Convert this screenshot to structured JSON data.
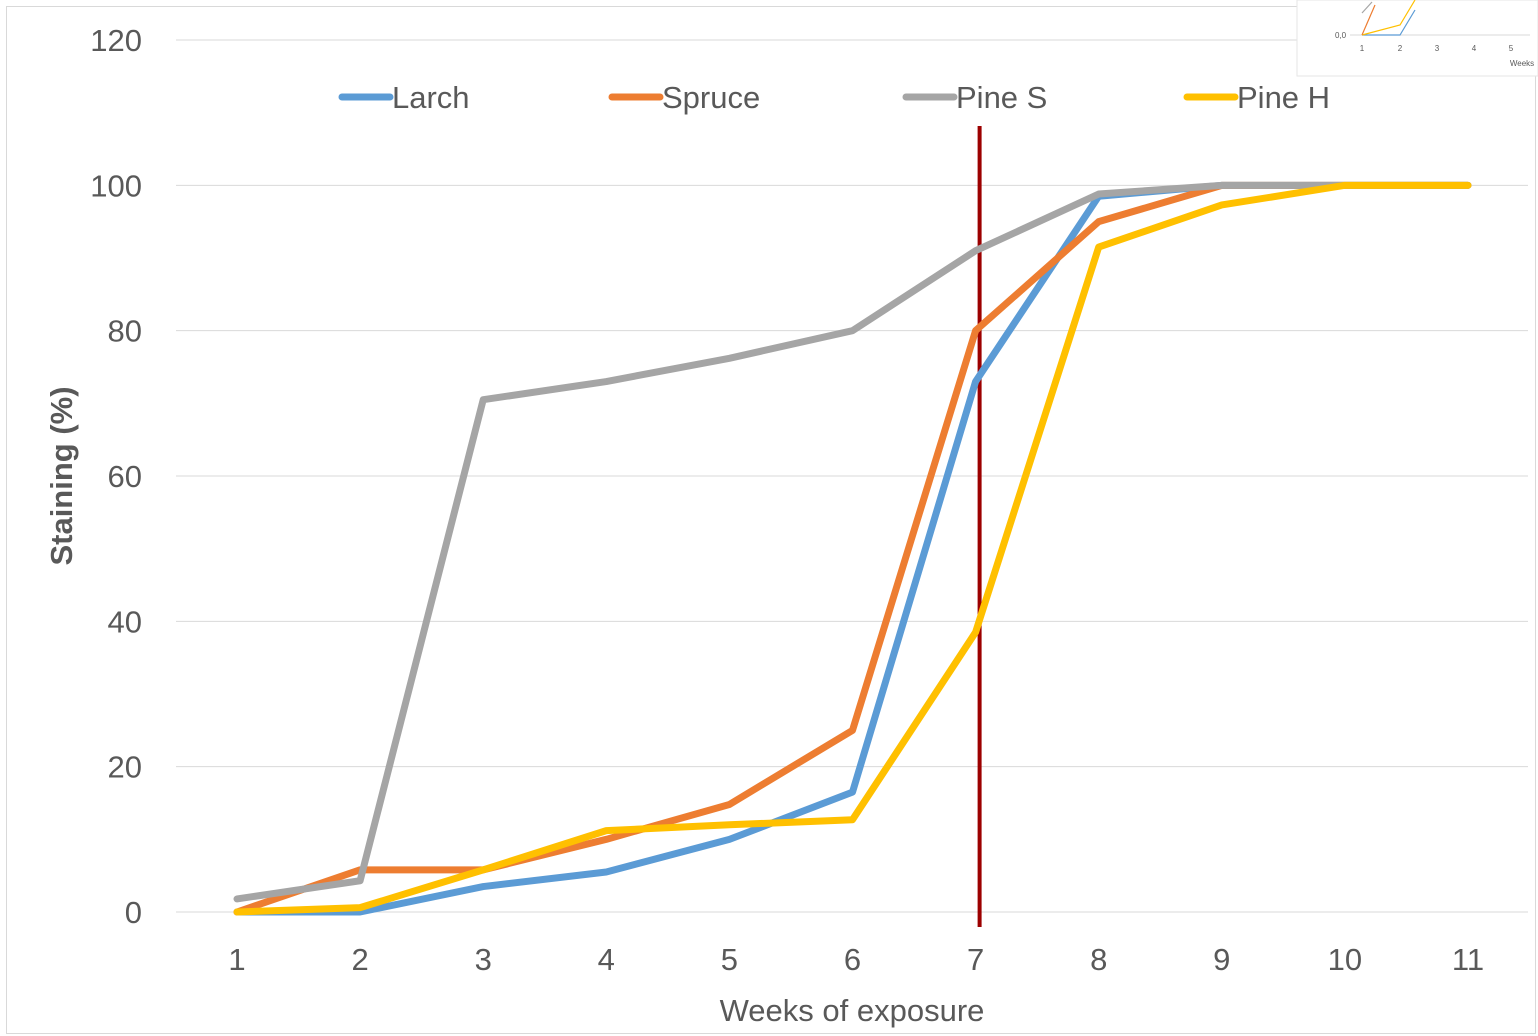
{
  "chart_data": {
    "type": "line",
    "title": "",
    "xlabel": "Weeks of exposure",
    "ylabel": "Staining (%)",
    "x": [
      1,
      2,
      3,
      4,
      5,
      6,
      7,
      8,
      9,
      10,
      11
    ],
    "xlim": [
      1,
      11
    ],
    "ylim": [
      0,
      120
    ],
    "yticks": [
      0,
      20,
      40,
      60,
      80,
      100,
      120
    ],
    "grid": "horizontal",
    "legend": "top",
    "series": [
      {
        "name": "Larch",
        "color": "#5b9bd5",
        "values": [
          0,
          0,
          3.5,
          5.5,
          10,
          16.5,
          73,
          98.5,
          100,
          100,
          100
        ]
      },
      {
        "name": "Spruce",
        "color": "#ed7d31",
        "values": [
          0,
          5.8,
          5.8,
          10,
          14.8,
          25,
          80,
          95,
          100,
          100,
          100
        ]
      },
      {
        "name": "Pine S",
        "color": "#a5a5a5",
        "values": [
          1.8,
          4.3,
          70.5,
          73,
          76.2,
          80,
          91,
          98.8,
          100,
          100,
          100
        ]
      },
      {
        "name": "Pine H",
        "color": "#ffc000",
        "values": [
          0,
          0.6,
          5.8,
          11.2,
          12,
          12.7,
          38.5,
          91.5,
          97.3,
          100,
          100
        ]
      }
    ],
    "reference_line": {
      "x": 7,
      "color": "#9c0000"
    },
    "inset": {
      "yticks": [
        "0,0"
      ],
      "xticks": [
        "1",
        "2",
        "3",
        "4",
        "5"
      ],
      "xlabel": "Weeks"
    }
  }
}
